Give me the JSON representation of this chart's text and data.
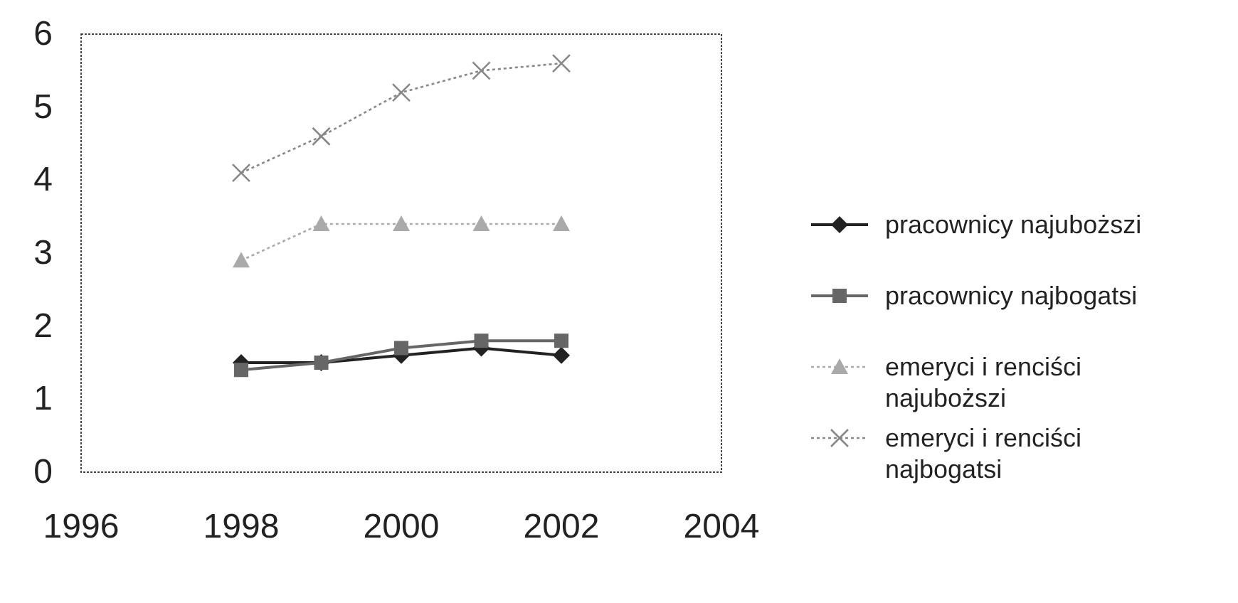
{
  "chart_data": {
    "type": "line",
    "x": [
      1998,
      1999,
      2000,
      2001,
      2002
    ],
    "xlim": [
      1996,
      2004
    ],
    "xticks": [
      1996,
      1998,
      2000,
      2002,
      2004
    ],
    "ylim": [
      0,
      6
    ],
    "yticks": [
      0,
      1,
      2,
      3,
      4,
      5,
      6
    ],
    "grid": false,
    "legend": "right",
    "series": [
      {
        "name": "pracownicy najuboższi",
        "color": "#222222",
        "marker": "diamond",
        "line_style": "solid",
        "values": [
          1.5,
          1.5,
          1.6,
          1.7,
          1.6
        ]
      },
      {
        "name": "pracownicy najbogatsi",
        "color": "#666666",
        "marker": "square",
        "line_style": "solid",
        "values": [
          1.4,
          1.5,
          1.7,
          1.8,
          1.8
        ]
      },
      {
        "name": "emeryci i renciści najuboższi",
        "color": "#aaaaaa",
        "marker": "triangle",
        "line_style": "dotted",
        "values": [
          2.9,
          3.4,
          3.4,
          3.4,
          3.4
        ]
      },
      {
        "name": "emeryci i renciści najbogatsi",
        "color": "#888888",
        "marker": "cross",
        "line_style": "dotted",
        "values": [
          4.1,
          4.6,
          5.2,
          5.5,
          5.6
        ]
      }
    ]
  }
}
